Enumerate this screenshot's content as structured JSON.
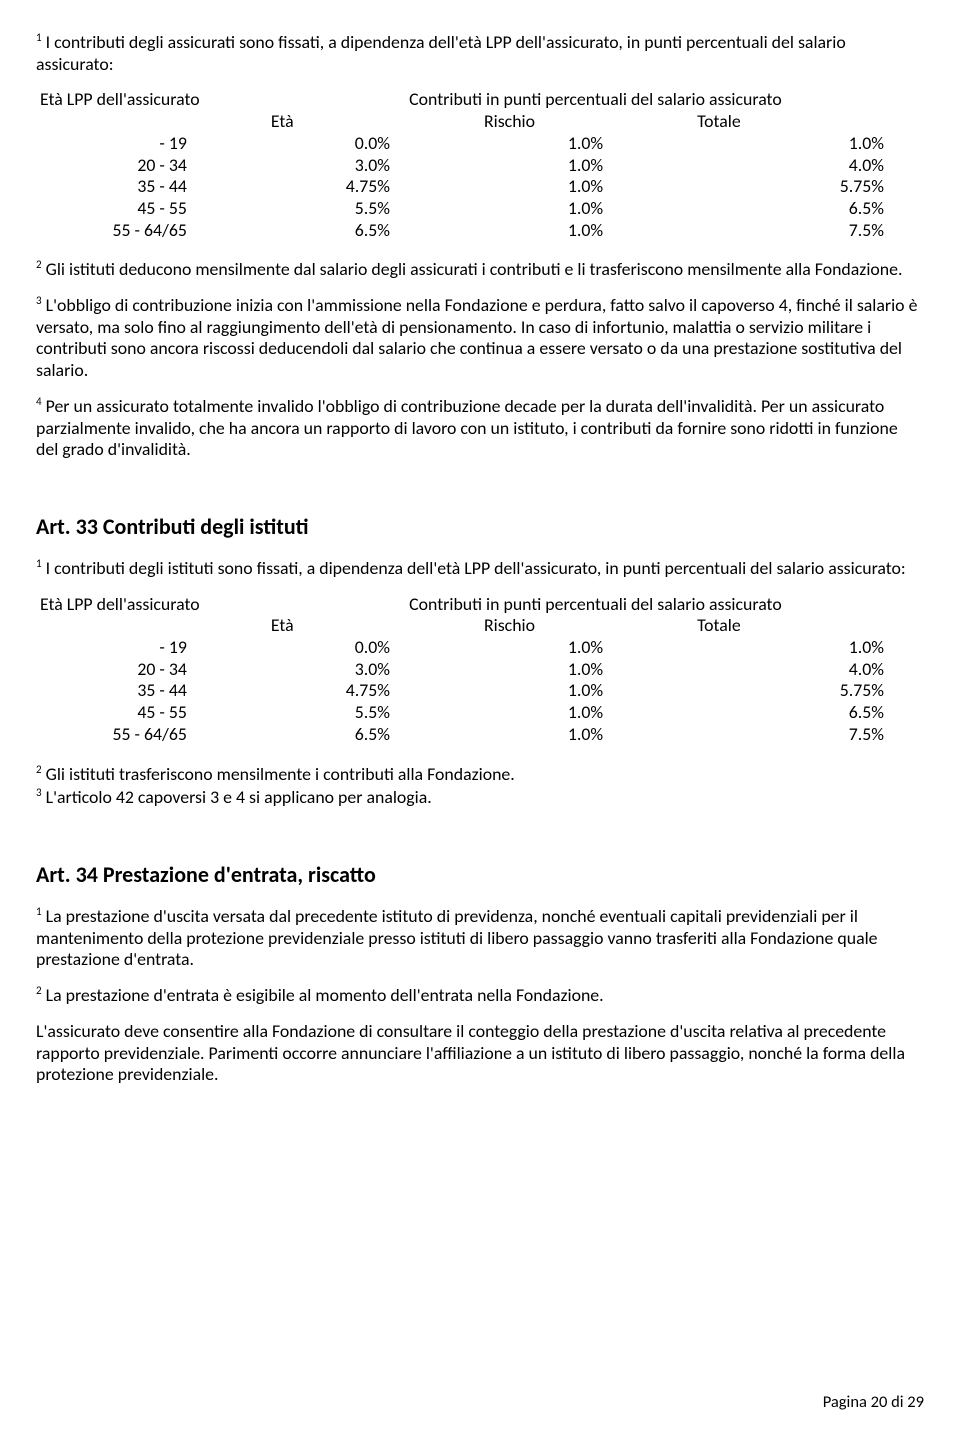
{
  "p1": "I contributi degli assicurati sono fissati, a dipendenza dell'età LPP dell'assicurato, in punti percentuali del salario assicurato:",
  "t1": {
    "h_age": "Età LPP dell'assicurato",
    "h_contrib": "Contributi in punti percentuali del salario assicurato",
    "h_eta": "Età",
    "h_risk": "Rischio",
    "h_tot": "Totale",
    "rows": [
      {
        "age": "- 19",
        "eta": "0.0%",
        "risk": "1.0%",
        "tot": "1.0%"
      },
      {
        "age": "20 - 34",
        "eta": "3.0%",
        "risk": "1.0%",
        "tot": "4.0%"
      },
      {
        "age": "35 - 44",
        "eta": "4.75%",
        "risk": "1.0%",
        "tot": "5.75%"
      },
      {
        "age": "45 - 55",
        "eta": "5.5%",
        "risk": "1.0%",
        "tot": "6.5%"
      },
      {
        "age": "55 - 64/65",
        "eta": "6.5%",
        "risk": "1.0%",
        "tot": "7.5%"
      }
    ]
  },
  "p2": "Gli istituti deducono mensilmente dal salario degli assicurati i contributi e li trasferiscono mensilmente alla Fondazione.",
  "p3": "L'obbligo di contribuzione inizia con l'ammissione nella Fondazione e perdura, fatto salvo il capoverso 4, finché il salario è versato, ma solo fino al raggiungimento dell'età di pensionamento. In caso di infortunio, malattia o servizio militare i contributi sono ancora riscossi deducendoli dal salario che continua a essere versato o da una prestazione sostitutiva del salario.",
  "p4": "Per un assicurato totalmente invalido l'obbligo di contribuzione decade per la durata dell'invalidità. Per un assicurato parzialmente invalido, che ha ancora un rapporto di lavoro con un istituto, i contributi da fornire sono ridotti in funzione del grado d'invalidità.",
  "h33": "Art. 33 Contributi degli istituti",
  "p5": "I contributi degli istituti sono fissati, a dipendenza dell'età LPP dell'assicurato, in punti percentuali del salario assicurato:",
  "p6": "Gli istituti trasferiscono mensilmente i contributi alla Fondazione.",
  "p7": "L'articolo 42 capoversi 3 e 4 si applicano per analogia.",
  "h34": "Art. 34 Prestazione d'entrata, riscatto",
  "p8": "La prestazione d'uscita versata dal precedente istituto di previdenza, nonché eventuali capitali previdenziali per il mantenimento della protezione previdenziale presso istituti di libero passaggio vanno trasferiti alla Fondazione quale prestazione d'entrata.",
  "p9": "La prestazione d'entrata è esigibile al momento dell'entrata nella Fondazione.",
  "p10": "L'assicurato deve consentire alla Fondazione di consultare il conteggio della prestazione d'uscita relativa al precedente rapporto previdenziale. Parimenti occorre annunciare l'affiliazione a un istituto di libero passaggio, nonché la forma della protezione previdenziale.",
  "footer": "Pagina 20 di 29"
}
